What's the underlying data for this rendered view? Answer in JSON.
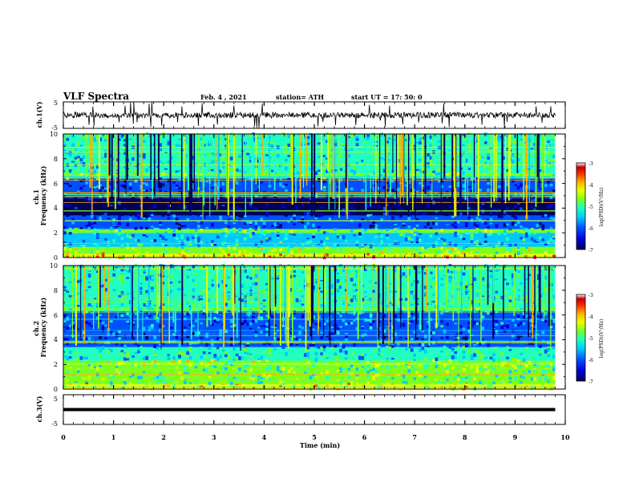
{
  "header": {
    "title": "VLF Spectra",
    "date": "Feb. 4  , 2021",
    "station": "station= ATH",
    "start_ut": "start  UT  =   17: 50: 0"
  },
  "chart_data": [
    {
      "type": "line",
      "name": "ch1-waveform",
      "ylabel": "ch.1(V)",
      "ylim": [
        -5,
        5
      ],
      "yticks": [
        "5",
        "-5"
      ],
      "xlim": [
        0,
        10
      ],
      "baseline_v": 0,
      "noise_band_v": [
        -1.2,
        1.0
      ],
      "spike_min_v": -5
    },
    {
      "type": "heatmap",
      "name": "ch1-spectrogram",
      "ylabel": "ch.1\nFrequency  (kHz)",
      "ylim": [
        0,
        10
      ],
      "yticks": [
        "0",
        "2",
        "4",
        "6",
        "8",
        "10"
      ],
      "xlim": [
        0,
        9.8
      ],
      "colorbar": {
        "label": "log(PSD)(V²/Hz)",
        "range": [
          -7,
          -3
        ],
        "ticks": [
          "-3",
          "-4",
          "-5",
          "-6",
          "-7"
        ]
      },
      "bands_khz": [
        {
          "f0": 0,
          "f1": 0.3,
          "level": -4.2
        },
        {
          "f0": 0.3,
          "f1": 0.9,
          "level": -4.8
        },
        {
          "f0": 0.9,
          "f1": 2.0,
          "level": -5.6
        },
        {
          "f0": 2.0,
          "f1": 2.3,
          "level": -5.0
        },
        {
          "f0": 2.3,
          "f1": 3.4,
          "level": -6.2
        },
        {
          "f0": 3.4,
          "f1": 4.8,
          "level": -7.0
        },
        {
          "f0": 4.8,
          "f1": 6.4,
          "level": -6.2
        },
        {
          "f0": 6.4,
          "f1": 6.8,
          "level": -5.0
        },
        {
          "f0": 6.8,
          "f1": 10,
          "level": -5.4
        }
      ]
    },
    {
      "type": "heatmap",
      "name": "ch2-spectrogram",
      "ylabel": "ch.2\nFrequency  (kHz)",
      "ylim": [
        0,
        10
      ],
      "yticks": [
        "0",
        "2",
        "4",
        "6",
        "8",
        "10"
      ],
      "xlim": [
        0,
        9.8
      ],
      "colorbar": {
        "label": "log(PSD)(V²/Hz)",
        "range": [
          -7,
          -3
        ],
        "ticks": [
          "-3",
          "-4",
          "-5",
          "-6",
          "-7"
        ]
      },
      "bands_khz": [
        {
          "f0": 0,
          "f1": 0.4,
          "level": -4.4
        },
        {
          "f0": 0.4,
          "f1": 2.0,
          "level": -5.0
        },
        {
          "f0": 2.0,
          "f1": 2.3,
          "level": -4.6
        },
        {
          "f0": 2.3,
          "f1": 3.4,
          "level": -5.4
        },
        {
          "f0": 3.4,
          "f1": 4.5,
          "level": -6.2
        },
        {
          "f0": 4.5,
          "f1": 6.3,
          "level": -6.0
        },
        {
          "f0": 6.3,
          "f1": 6.6,
          "level": -5.0
        },
        {
          "f0": 6.6,
          "f1": 10,
          "level": -5.4
        }
      ]
    },
    {
      "type": "line",
      "name": "ch3-waveform",
      "ylabel": "ch.3(V)",
      "ylim": [
        -5,
        5
      ],
      "yticks": [
        "5",
        "-5"
      ],
      "xlim": [
        0,
        10
      ],
      "constant_v": 0,
      "xlabel": "Time  (min)",
      "xticks": [
        "0",
        "1",
        "2",
        "3",
        "4",
        "5",
        "6",
        "7",
        "8",
        "9",
        "10"
      ]
    }
  ],
  "colors": {
    "colormap": [
      "#00005a",
      "#0000d8",
      "#0050ff",
      "#00c8ff",
      "#20ffc0",
      "#7cff20",
      "#e8ff00",
      "#ffb000",
      "#ff3000",
      "#c00000",
      "#ffffff"
    ]
  }
}
